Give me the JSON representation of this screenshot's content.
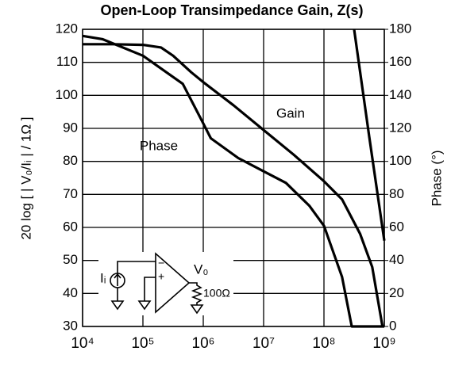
{
  "chart_data": {
    "type": "line",
    "title": "Open-Loop Transimpedance Gain, Z(s)",
    "ylabel": "20 log [ | V₀/Iᵢ | / 1Ω ]",
    "y2label": "Phase (°)",
    "log_x": true,
    "grid": true,
    "xlim": [
      10000,
      1000000000
    ],
    "xticks": [
      {
        "value": 10000,
        "label": "10⁴"
      },
      {
        "value": 100000,
        "label": "10⁵"
      },
      {
        "value": 1000000,
        "label": "10⁶"
      },
      {
        "value": 10000000,
        "label": "10⁷"
      },
      {
        "value": 100000000,
        "label": "10⁸"
      },
      {
        "value": 1000000000,
        "label": "10⁹"
      }
    ],
    "ylim": [
      30,
      120
    ],
    "yticks": [
      30,
      40,
      50,
      60,
      70,
      80,
      90,
      100,
      110,
      120
    ],
    "y2lim": [
      0,
      180
    ],
    "y2ticks": [
      0,
      20,
      40,
      60,
      80,
      100,
      120,
      140,
      160,
      180
    ],
    "annotations": [
      "Gain",
      "Phase"
    ],
    "circuit": {
      "source": "Iᵢ",
      "output": "V₀",
      "resistor": "100Ω",
      "inverting": "−",
      "noninverting": "+"
    },
    "series": [
      {
        "name": "Gain",
        "color": "#000000",
        "x": [
          10000,
          31623,
          100000,
          199526,
          316228,
          630957,
          1000000,
          3162278,
          10000000,
          31622777,
          100000000,
          199526231,
          398107171,
          630957344,
          933254301
        ],
        "values": [
          115.5,
          115.5,
          115.3,
          114.5,
          112,
          107,
          104,
          97,
          89.5,
          82,
          74,
          68.5,
          58,
          48,
          30
        ]
      },
      {
        "name": "Phase",
        "color": "#000000",
        "axis": "y2",
        "x": [
          10000,
          21544,
          100000,
          457088,
          1000000,
          1333521,
          3801894,
          10000000,
          23442288,
          57543994,
          100000000,
          199526231,
          288403150,
          1000000000,
          300000000,
          316227766,
          562341325,
          1000000000
        ],
        "values": [
          176,
          174,
          164,
          147,
          123,
          114,
          102,
          94,
          87,
          73,
          61,
          30,
          0,
          0,
          null,
          180,
          115,
          52
        ]
      }
    ]
  }
}
